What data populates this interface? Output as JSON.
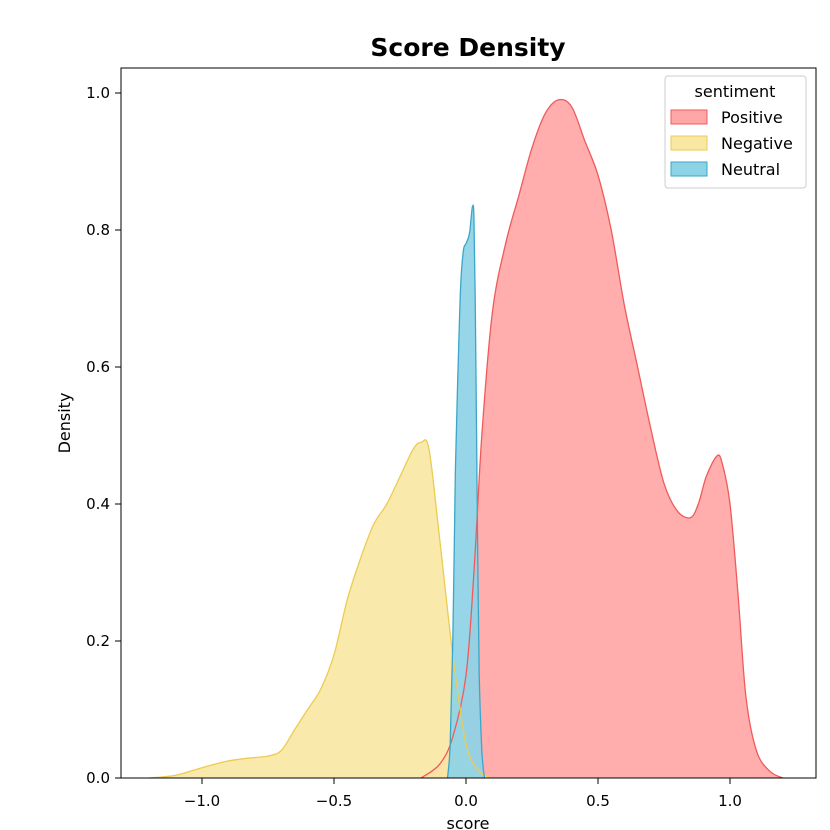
{
  "chart_data": {
    "type": "area",
    "title": "Score Density",
    "xlabel": "score",
    "ylabel": "Density",
    "xlim": [
      -1.3,
      1.32
    ],
    "ylim": [
      0,
      1.04
    ],
    "xticks": [
      -1.0,
      -0.5,
      0.0,
      0.5,
      1.0
    ],
    "xtick_labels": [
      "−1.0",
      "−0.5",
      "0.0",
      "0.5",
      "1.0"
    ],
    "yticks": [
      0.0,
      0.2,
      0.4,
      0.6,
      0.8,
      1.0
    ],
    "ytick_labels": [
      "0.0",
      "0.2",
      "0.4",
      "0.6",
      "0.8",
      "1.0"
    ],
    "grid": false,
    "legend": {
      "title": "sentiment",
      "position": "top-right"
    },
    "series": [
      {
        "name": "Positive",
        "fill": "#FFA6A6",
        "stroke": "#F05A5A",
        "x": [
          -0.17,
          -0.1,
          -0.05,
          0.0,
          0.03,
          0.06,
          0.1,
          0.15,
          0.2,
          0.25,
          0.3,
          0.35,
          0.4,
          0.45,
          0.5,
          0.55,
          0.6,
          0.65,
          0.7,
          0.75,
          0.8,
          0.85,
          0.88,
          0.91,
          0.95,
          0.97,
          1.0,
          1.03,
          1.06,
          1.1,
          1.15,
          1.2
        ],
        "y": [
          0.0,
          0.02,
          0.06,
          0.15,
          0.3,
          0.5,
          0.68,
          0.78,
          0.85,
          0.92,
          0.97,
          0.99,
          0.98,
          0.93,
          0.88,
          0.8,
          0.69,
          0.6,
          0.51,
          0.43,
          0.39,
          0.38,
          0.4,
          0.44,
          0.47,
          0.46,
          0.4,
          0.27,
          0.12,
          0.04,
          0.01,
          0.0
        ]
      },
      {
        "name": "Negative",
        "fill": "#F9E7A4",
        "stroke": "#EDCB52",
        "x": [
          -1.2,
          -1.1,
          -1.0,
          -0.9,
          -0.8,
          -0.75,
          -0.7,
          -0.65,
          -0.6,
          -0.55,
          -0.5,
          -0.45,
          -0.4,
          -0.35,
          -0.3,
          -0.25,
          -0.2,
          -0.17,
          -0.14,
          -0.1,
          -0.05,
          0.0,
          0.05,
          0.1
        ],
        "y": [
          0.0,
          0.004,
          0.015,
          0.025,
          0.03,
          0.032,
          0.04,
          0.07,
          0.1,
          0.13,
          0.18,
          0.26,
          0.32,
          0.37,
          0.4,
          0.44,
          0.48,
          0.49,
          0.48,
          0.35,
          0.18,
          0.05,
          0.01,
          0.0
        ]
      },
      {
        "name": "Neutral",
        "fill": "#8DD3E6",
        "stroke": "#3AA7C9",
        "x": [
          -0.07,
          -0.06,
          -0.05,
          -0.04,
          -0.03,
          -0.02,
          -0.01,
          0.0,
          0.01,
          0.015,
          0.02,
          0.025,
          0.03,
          0.035,
          0.04,
          0.045,
          0.05,
          0.06,
          0.07
        ],
        "y": [
          0.0,
          0.05,
          0.2,
          0.45,
          0.6,
          0.72,
          0.77,
          0.78,
          0.79,
          0.8,
          0.82,
          0.835,
          0.82,
          0.7,
          0.5,
          0.3,
          0.15,
          0.04,
          0.0
        ]
      }
    ]
  }
}
